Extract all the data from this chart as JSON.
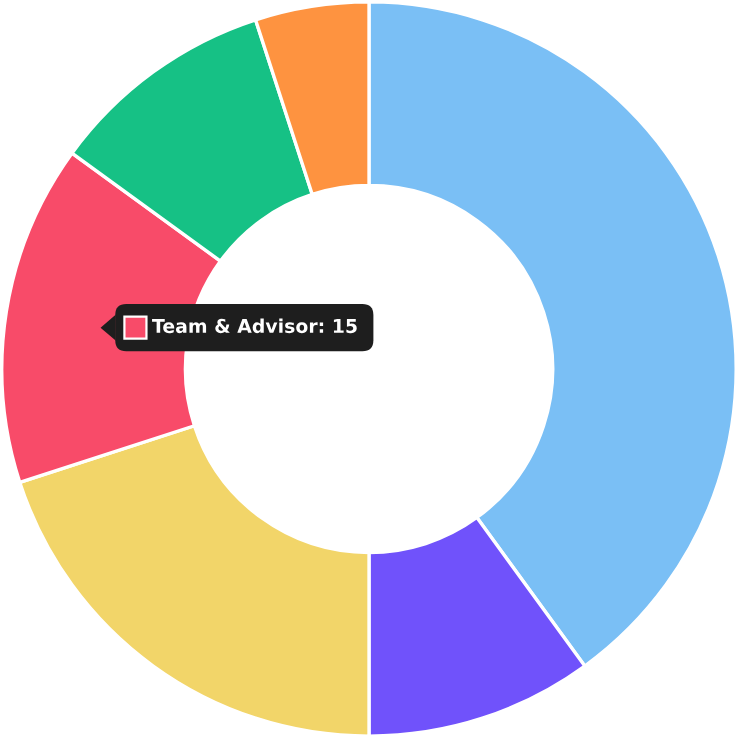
{
  "chart_data": {
    "type": "donut",
    "categories": [
      null,
      null,
      null,
      "Team & Advisor",
      null,
      null
    ],
    "values": [
      40,
      10,
      20,
      15,
      10,
      5
    ],
    "value_labels": [
      null,
      null,
      null,
      "15",
      null,
      null
    ],
    "colors": [
      "#7abff5",
      "#7052fb",
      "#f2d569",
      "#f84b69",
      "#16c185",
      "#fe9340"
    ],
    "legend": "left"
  }
}
